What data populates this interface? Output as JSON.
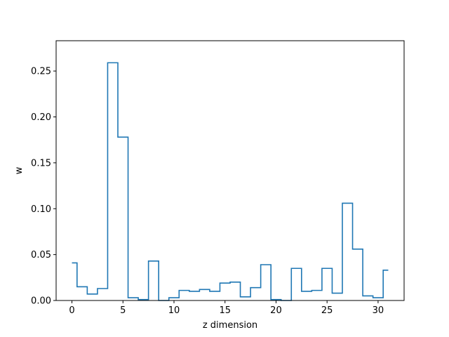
{
  "chart_data": {
    "type": "line",
    "drawstyle": "steps-mid",
    "title": "",
    "xlabel": "z dimension",
    "ylabel": "w",
    "xlim": [
      -1.55,
      32.55
    ],
    "ylim": [
      0.0,
      0.283
    ],
    "xticks": [
      0,
      5,
      10,
      15,
      20,
      25,
      30
    ],
    "xtick_labels": [
      "0",
      "5",
      "10",
      "15",
      "20",
      "25",
      "30"
    ],
    "yticks": [
      0.0,
      0.05,
      0.1,
      0.15,
      0.2,
      0.25
    ],
    "ytick_labels": [
      "0.00",
      "0.05",
      "0.10",
      "0.15",
      "0.20",
      "0.25"
    ],
    "grid": false,
    "series": [
      {
        "color": "#1f77b4",
        "x": [
          0,
          1,
          2,
          3,
          4,
          5,
          6,
          7,
          8,
          9,
          10,
          11,
          12,
          13,
          14,
          15,
          16,
          17,
          18,
          19,
          20,
          21,
          22,
          23,
          24,
          25,
          26,
          27,
          28,
          29,
          30,
          31
        ],
        "values": [
          0.041,
          0.015,
          0.007,
          0.013,
          0.259,
          0.178,
          0.003,
          0.001,
          0.043,
          0.0,
          0.003,
          0.011,
          0.01,
          0.012,
          0.01,
          0.019,
          0.02,
          0.004,
          0.014,
          0.039,
          0.001,
          0.0,
          0.035,
          0.01,
          0.011,
          0.035,
          0.008,
          0.106,
          0.056,
          0.005,
          0.003,
          0.033
        ]
      }
    ]
  }
}
